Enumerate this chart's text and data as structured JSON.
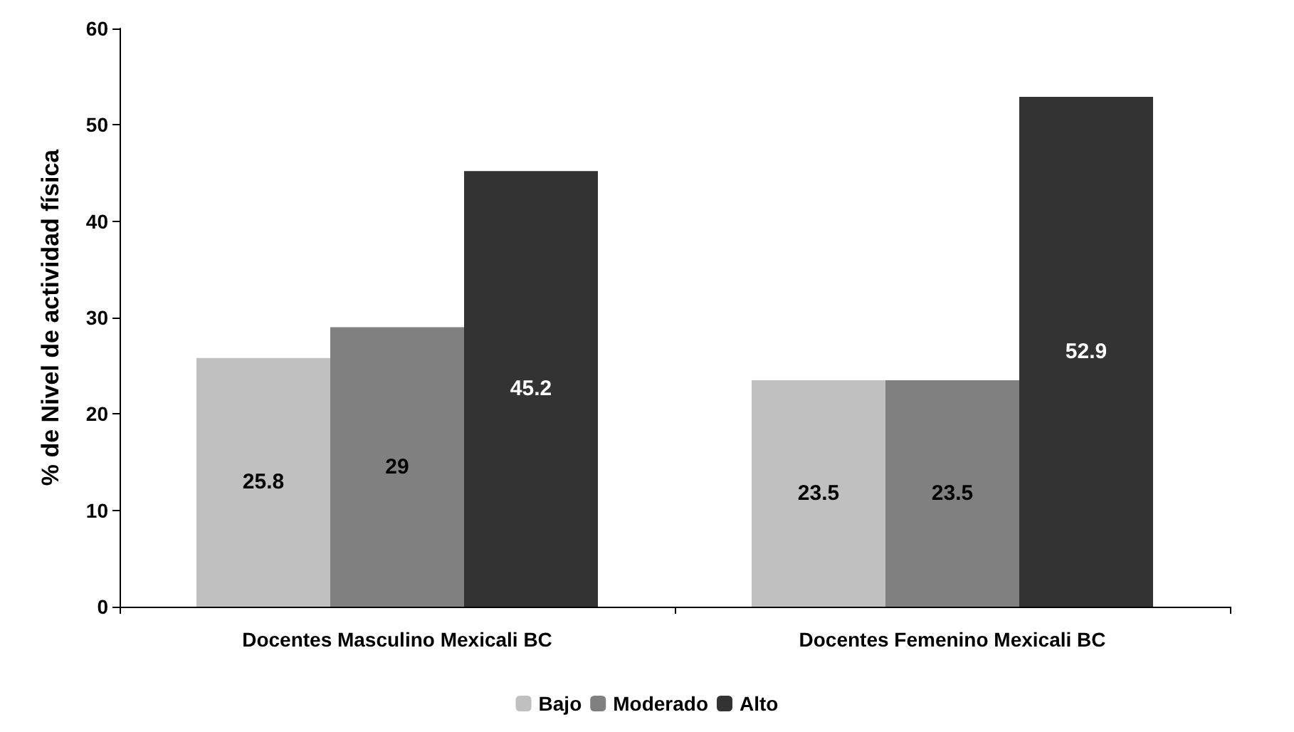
{
  "chart_data": {
    "type": "bar",
    "ylabel": "% de Nivel de actividad física",
    "categories": [
      "Docentes Masculino Mexicali BC",
      "Docentes Femenino Mexicali BC"
    ],
    "series": [
      {
        "name": "Bajo",
        "color": "#c0c0c0",
        "values": [
          25.8,
          23.5
        ]
      },
      {
        "name": "Moderado",
        "color": "#808080",
        "values": [
          29,
          23.5
        ]
      },
      {
        "name": "Alto",
        "color": "#333333",
        "values": [
          45.2,
          52.9
        ]
      }
    ],
    "ylim": [
      0,
      60
    ],
    "yticks": [
      0,
      10,
      20,
      30,
      40,
      50,
      60
    ],
    "grid": false,
    "legend": "bottom",
    "data_labels": true
  }
}
